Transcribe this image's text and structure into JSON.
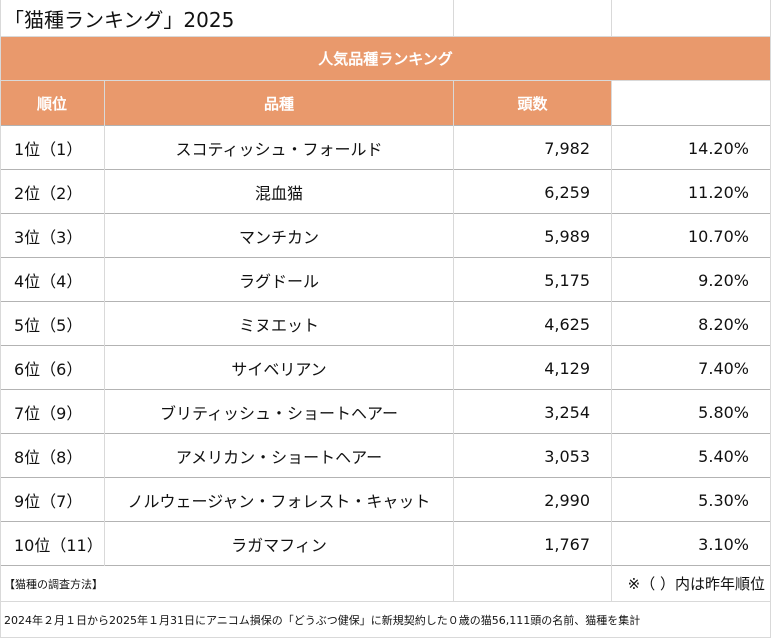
{
  "title": "「猫種ランキング」2025",
  "banner": "人気品種ランキング",
  "headers": {
    "rank": "順位",
    "breed": "品種",
    "count": "頭数"
  },
  "rows": [
    {
      "rank": "1位（1）",
      "breed": "スコティッシュ・フォールド",
      "count": "7,982",
      "share": "14.20%"
    },
    {
      "rank": "2位（2）",
      "breed": "混血猫",
      "count": "6,259",
      "share": "11.20%"
    },
    {
      "rank": "3位（3）",
      "breed": "マンチカン",
      "count": "5,989",
      "share": "10.70%"
    },
    {
      "rank": "4位（4）",
      "breed": "ラグドール",
      "count": "5,175",
      "share": "9.20%"
    },
    {
      "rank": "5位（5）",
      "breed": "ミヌエット",
      "count": "4,625",
      "share": "8.20%"
    },
    {
      "rank": "6位（6）",
      "breed": "サイベリアン",
      "count": "4,129",
      "share": "7.40%"
    },
    {
      "rank": "7位（9）",
      "breed": "ブリティッシュ・ショートヘアー",
      "count": "3,254",
      "share": "5.80%"
    },
    {
      "rank": "8位（8）",
      "breed": "アメリカン・ショートヘアー",
      "count": "3,053",
      "share": "5.40%"
    },
    {
      "rank": "9位（7）",
      "breed": "ノルウェージャン・フォレスト・キャット",
      "count": "2,990",
      "share": "5.30%"
    },
    {
      "rank": "10位（11）",
      "breed": "ラガマフィン",
      "count": "1,767",
      "share": "3.10%"
    }
  ],
  "notes": {
    "method_label": "【猫種の調査方法】",
    "parentheses_note": "※（ ）内は昨年順位",
    "method_text": "2024年２月１日から2025年１月31日にアニコム損保の「どうぶつ健保」に新規契約した０歳の猫56,111頭の名前、猫種を集計"
  },
  "colors": {
    "accent": "#e9996c",
    "header_text": "#ffffff",
    "grid": "#d9d9d9"
  }
}
